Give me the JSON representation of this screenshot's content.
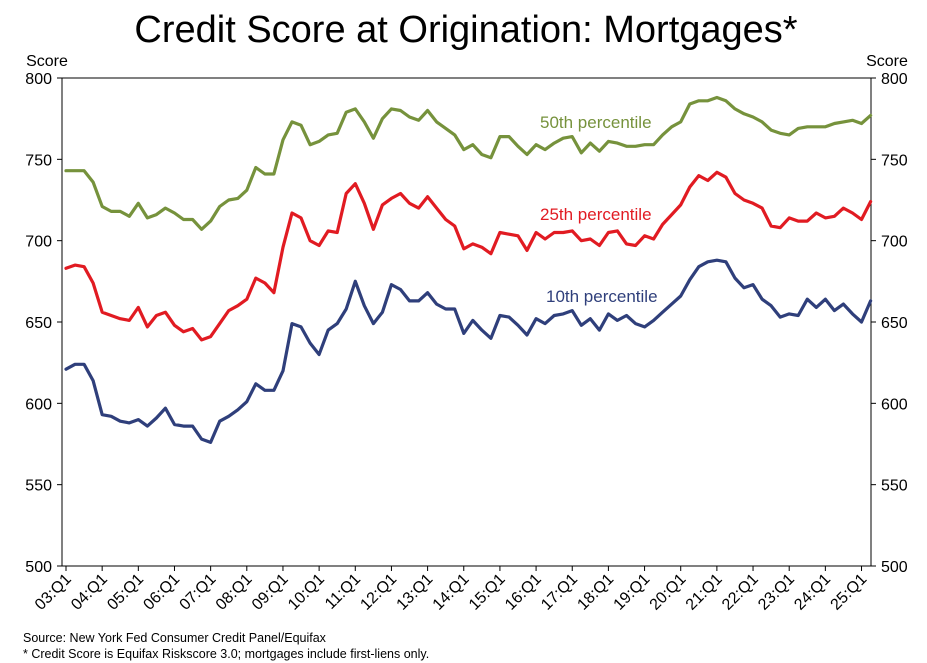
{
  "chart_data": {
    "type": "line",
    "title": "Credit Score at Origination: Mortgages*",
    "ylabel_left": "Score",
    "ylabel_right": "Score",
    "ylim": [
      500,
      800
    ],
    "yticks": [
      "800",
      "750",
      "700",
      "650",
      "600",
      "550",
      "500"
    ],
    "x_start": "2003Q1",
    "x_tick_labels": [
      "03:Q1",
      "04:Q1",
      "05:Q1",
      "06:Q1",
      "07:Q1",
      "08:Q1",
      "09:Q1",
      "10:Q1",
      "11:Q1",
      "12:Q1",
      "13:Q1",
      "14:Q1",
      "15:Q1",
      "16:Q1",
      "17:Q1",
      "18:Q1",
      "19:Q1",
      "20:Q1",
      "21:Q1",
      "22:Q1",
      "23:Q1",
      "24:Q1",
      "25:Q1"
    ],
    "grid": false,
    "series": [
      {
        "name": "50th percentile",
        "color": "#76923c",
        "values": [
          743,
          743,
          743,
          736,
          721,
          718,
          718,
          715,
          723,
          714,
          716,
          720,
          717,
          713,
          713,
          707,
          712,
          721,
          725,
          726,
          731,
          745,
          741,
          741,
          762,
          773,
          771,
          759,
          761,
          765,
          766,
          779,
          781,
          773,
          763,
          775,
          781,
          780,
          776,
          774,
          780,
          773,
          769,
          765,
          756,
          759,
          753,
          751,
          764,
          764,
          758,
          753,
          759,
          756,
          760,
          763,
          764,
          754,
          760,
          755,
          761,
          760,
          758,
          758,
          759,
          759,
          765,
          770,
          773,
          784,
          786,
          786,
          788,
          786,
          781,
          778,
          776,
          773,
          768,
          766,
          765,
          769,
          770,
          770,
          770,
          772,
          773,
          774,
          772,
          777
        ]
      },
      {
        "name": "25th percentile",
        "color": "#e11b22",
        "values": [
          683,
          685,
          684,
          674,
          656,
          654,
          652,
          651,
          659,
          647,
          654,
          656,
          648,
          644,
          646,
          639,
          641,
          649,
          657,
          660,
          664,
          677,
          674,
          668,
          696,
          717,
          714,
          700,
          697,
          706,
          705,
          729,
          735,
          723,
          707,
          722,
          726,
          729,
          723,
          720,
          727,
          720,
          713,
          709,
          695,
          698,
          696,
          692,
          705,
          704,
          703,
          694,
          705,
          701,
          705,
          705,
          706,
          700,
          701,
          697,
          705,
          706,
          698,
          697,
          703,
          701,
          710,
          716,
          722,
          733,
          740,
          737,
          742,
          739,
          729,
          725,
          723,
          720,
          709,
          708,
          714,
          712,
          712,
          717,
          714,
          715,
          720,
          717,
          713,
          724
        ]
      },
      {
        "name": "10th percentile",
        "color": "#2f3f7b",
        "values": [
          621,
          624,
          624,
          614,
          593,
          592,
          589,
          588,
          590,
          586,
          591,
          597,
          587,
          586,
          586,
          578,
          576,
          589,
          592,
          596,
          601,
          612,
          608,
          608,
          620,
          649,
          647,
          637,
          630,
          645,
          649,
          658,
          675,
          660,
          649,
          656,
          673,
          670,
          663,
          663,
          668,
          661,
          658,
          658,
          643,
          651,
          645,
          640,
          654,
          653,
          648,
          642,
          652,
          649,
          654,
          655,
          657,
          648,
          652,
          645,
          655,
          651,
          654,
          649,
          647,
          651,
          656,
          661,
          666,
          676,
          684,
          687,
          688,
          687,
          677,
          671,
          673,
          664,
          660,
          653,
          655,
          654,
          664,
          659,
          664,
          657,
          661,
          655,
          650,
          663
        ]
      }
    ],
    "notes": [
      "Source: New York Fed Consumer Credit Panel/Equifax",
      "* Credit Score is Equifax Riskscore 3.0; mortgages include first-liens only."
    ]
  }
}
